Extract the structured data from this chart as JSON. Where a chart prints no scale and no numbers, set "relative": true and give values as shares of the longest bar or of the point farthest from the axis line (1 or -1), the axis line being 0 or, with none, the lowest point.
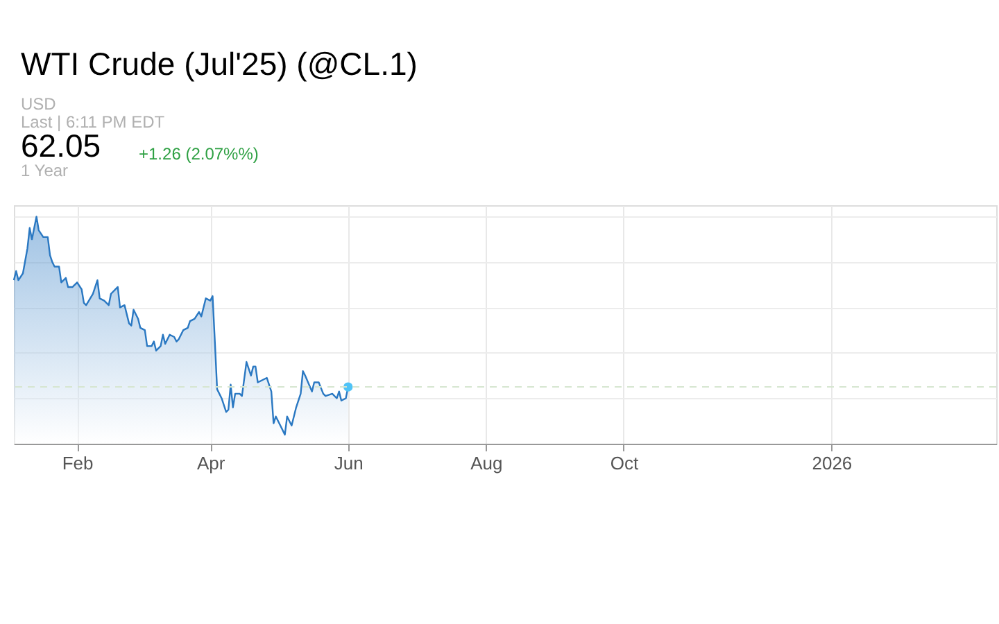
{
  "chart_data": {
    "type": "area",
    "title": "WTI Crude (Jul'25) (@CL.1)",
    "annotations": [
      "USD",
      "Last | 6:11 PM EDT",
      "62.05",
      "+1.26 (2.07%%)",
      "1 Year"
    ],
    "relative": true,
    "tick_labels": "x",
    "grid": true,
    "xlim": [
      "2025-01-04",
      "2026-03-15"
    ],
    "xticks": [
      {
        "value": "2025-02-01",
        "label": "Feb"
      },
      {
        "value": "2025-04-01",
        "label": "Apr"
      },
      {
        "value": "2025-06-01",
        "label": "Jun"
      },
      {
        "value": "2025-08-01",
        "label": "Aug"
      },
      {
        "value": "2025-10-01",
        "label": "Oct"
      },
      {
        "value": "2026-01-01",
        "label": "2026"
      }
    ],
    "ref_lines": [
      {
        "axis": "y",
        "value": 0.25,
        "line_style": "dashed",
        "color": "#d6e6d0"
      }
    ],
    "series": [
      {
        "color": "#2a78c2",
        "x": [
          "2025-01-04",
          "2025-01-05",
          "2025-01-06",
          "2025-01-08",
          "2025-01-10",
          "2025-01-11",
          "2025-01-12",
          "2025-01-14",
          "2025-01-15",
          "2025-01-17",
          "2025-01-19",
          "2025-01-20",
          "2025-01-21",
          "2025-01-22",
          "2025-01-24",
          "2025-01-25",
          "2025-01-27",
          "2025-01-28",
          "2025-01-30",
          "2025-02-01",
          "2025-02-03",
          "2025-02-04",
          "2025-02-05",
          "2025-02-08",
          "2025-02-10",
          "2025-02-11",
          "2025-02-13",
          "2025-02-15",
          "2025-02-16",
          "2025-02-19",
          "2025-02-20",
          "2025-02-22",
          "2025-02-24",
          "2025-02-25",
          "2025-02-26",
          "2025-02-28",
          "2025-03-01",
          "2025-03-03",
          "2025-03-04",
          "2025-03-06",
          "2025-03-07",
          "2025-03-08",
          "2025-03-10",
          "2025-03-11",
          "2025-03-12",
          "2025-03-14",
          "2025-03-16",
          "2025-03-17",
          "2025-03-18",
          "2025-03-20",
          "2025-03-22",
          "2025-03-23",
          "2025-03-25",
          "2025-03-27",
          "2025-03-28",
          "2025-03-30",
          "2025-04-01",
          "2025-04-02",
          "2025-04-03",
          "2025-04-04",
          "2025-04-06",
          "2025-04-08",
          "2025-04-09",
          "2025-04-10",
          "2025-04-11",
          "2025-04-12",
          "2025-04-14",
          "2025-04-15",
          "2025-04-17",
          "2025-04-19",
          "2025-04-20",
          "2025-04-21",
          "2025-04-22",
          "2025-04-24",
          "2025-04-26",
          "2025-04-28",
          "2025-04-29",
          "2025-04-30",
          "2025-05-02",
          "2025-05-04",
          "2025-05-05",
          "2025-05-07",
          "2025-05-09",
          "2025-05-11",
          "2025-05-12",
          "2025-05-13",
          "2025-05-16",
          "2025-05-17",
          "2025-05-19",
          "2025-05-21",
          "2025-05-22",
          "2025-05-25",
          "2025-05-27",
          "2025-05-28",
          "2025-05-29",
          "2025-05-31",
          "2025-06-01"
        ],
        "values": [
          0.72,
          0.76,
          0.72,
          0.75,
          0.86,
          0.95,
          0.9,
          1.0,
          0.94,
          0.91,
          0.91,
          0.83,
          0.8,
          0.78,
          0.78,
          0.71,
          0.73,
          0.69,
          0.69,
          0.71,
          0.68,
          0.62,
          0.61,
          0.66,
          0.72,
          0.64,
          0.63,
          0.61,
          0.66,
          0.69,
          0.6,
          0.61,
          0.53,
          0.52,
          0.59,
          0.55,
          0.51,
          0.5,
          0.43,
          0.43,
          0.45,
          0.41,
          0.43,
          0.48,
          0.44,
          0.48,
          0.47,
          0.45,
          0.46,
          0.5,
          0.51,
          0.54,
          0.55,
          0.58,
          0.56,
          0.64,
          0.63,
          0.65,
          0.45,
          0.24,
          0.2,
          0.14,
          0.15,
          0.26,
          0.16,
          0.22,
          0.22,
          0.21,
          0.36,
          0.3,
          0.34,
          0.34,
          0.27,
          0.28,
          0.29,
          0.23,
          0.09,
          0.12,
          0.08,
          0.04,
          0.12,
          0.08,
          0.16,
          0.22,
          0.32,
          0.3,
          0.23,
          0.27,
          0.27,
          0.22,
          0.21,
          0.22,
          0.2,
          0.23,
          0.19,
          0.2,
          0.25
        ]
      }
    ]
  }
}
